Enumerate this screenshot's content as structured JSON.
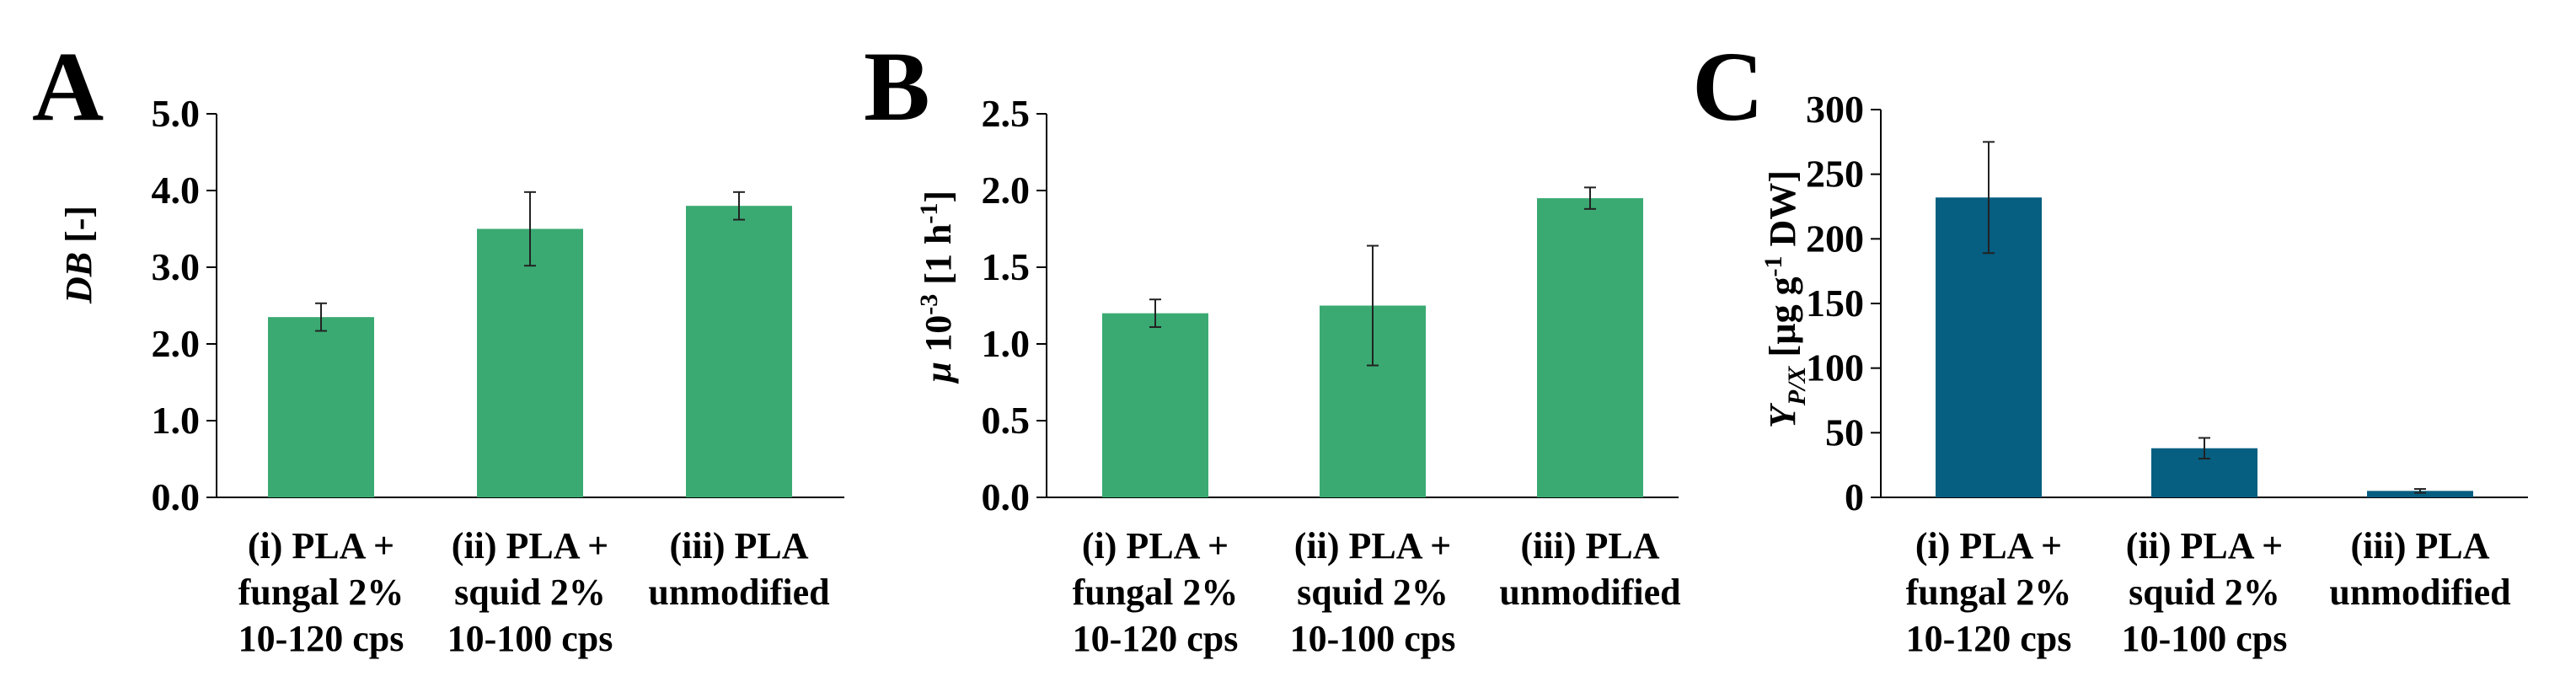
{
  "chart_data": [
    {
      "type": "bar",
      "panel": "A",
      "ylabel": {
        "italic": "DB",
        "rest": " [-]"
      },
      "ylim": [
        0,
        5
      ],
      "yticks": [
        {
          "value": 0,
          "label": "0.0"
        },
        {
          "value": 1,
          "label": "1.0"
        },
        {
          "value": 2,
          "label": "2.0"
        },
        {
          "value": 3,
          "label": "3.0"
        },
        {
          "value": 4,
          "label": "4.0"
        },
        {
          "value": 5,
          "label": "5.0"
        }
      ],
      "categories": [
        [
          "(i) PLA +",
          "fungal 2%",
          "10-120 cps"
        ],
        [
          "(ii) PLA +",
          "squid 2%",
          "10-100 cps"
        ],
        [
          "(iii)  PLA",
          "unmodified"
        ]
      ],
      "values": [
        2.35,
        3.5,
        3.8
      ],
      "errors": [
        0.18,
        0.48,
        0.18
      ],
      "color": "#3aaa72"
    },
    {
      "type": "bar",
      "panel": "B",
      "ylabel": {
        "italic": "µ",
        "rest": " 10",
        "sup": "-3",
        "rest2": " [1 h",
        "sup2": "-1",
        "rest3": "]"
      },
      "ylim": [
        0,
        2.5
      ],
      "yticks": [
        {
          "value": 0,
          "label": "0.0"
        },
        {
          "value": 0.5,
          "label": "0.5"
        },
        {
          "value": 1,
          "label": "1.0"
        },
        {
          "value": 1.5,
          "label": "1.5"
        },
        {
          "value": 2,
          "label": "2.0"
        },
        {
          "value": 2.5,
          "label": "2.5"
        }
      ],
      "categories": [
        [
          "(i) PLA +",
          "fungal 2%",
          "10-120 cps"
        ],
        [
          "(ii) PLA +",
          "squid 2%",
          "10-100 cps"
        ],
        [
          "(iii)  PLA",
          "unmodified"
        ]
      ],
      "values": [
        1.2,
        1.25,
        1.95
      ],
      "errors": [
        0.09,
        0.39,
        0.07
      ],
      "color": "#3aaa72"
    },
    {
      "type": "bar",
      "panel": "C",
      "ylabel": {
        "italic": "Y",
        "sub": "P/X",
        "rest": " [µg g",
        "sup": "-1",
        "rest2": " DW]"
      },
      "ylim": [
        0,
        300
      ],
      "yticks": [
        {
          "value": 0,
          "label": "0"
        },
        {
          "value": 50,
          "label": "50"
        },
        {
          "value": 100,
          "label": "100"
        },
        {
          "value": 150,
          "label": "150"
        },
        {
          "value": 200,
          "label": "200"
        },
        {
          "value": 250,
          "label": "250"
        },
        {
          "value": 300,
          "label": "300"
        }
      ],
      "categories": [
        [
          "(i) PLA +",
          "fungal 2%",
          "10-120 cps"
        ],
        [
          "(ii) PLA +",
          "squid 2%",
          "10-100 cps"
        ],
        [
          "(iii)  PLA",
          "unmodified"
        ]
      ],
      "values": [
        232,
        38,
        5
      ],
      "errors": [
        43,
        8,
        1.5
      ],
      "color": "#065e80"
    }
  ]
}
